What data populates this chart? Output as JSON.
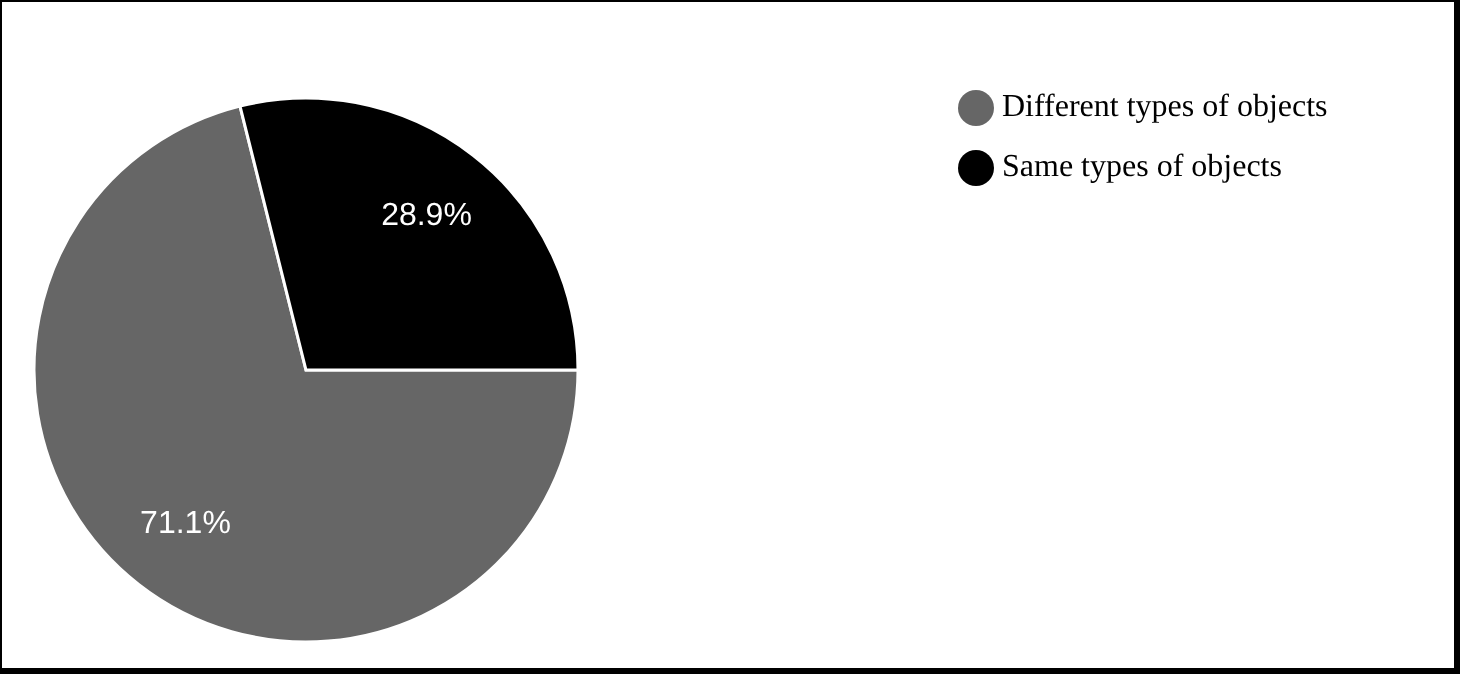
{
  "chart_data": {
    "type": "pie",
    "categories": [
      "Different types of objects",
      "Same types of objects"
    ],
    "values": [
      71.1,
      28.9
    ],
    "colors": [
      "#666666",
      "#000000"
    ],
    "value_labels": [
      "71.1%",
      "28.9%"
    ],
    "legend": "top right"
  }
}
